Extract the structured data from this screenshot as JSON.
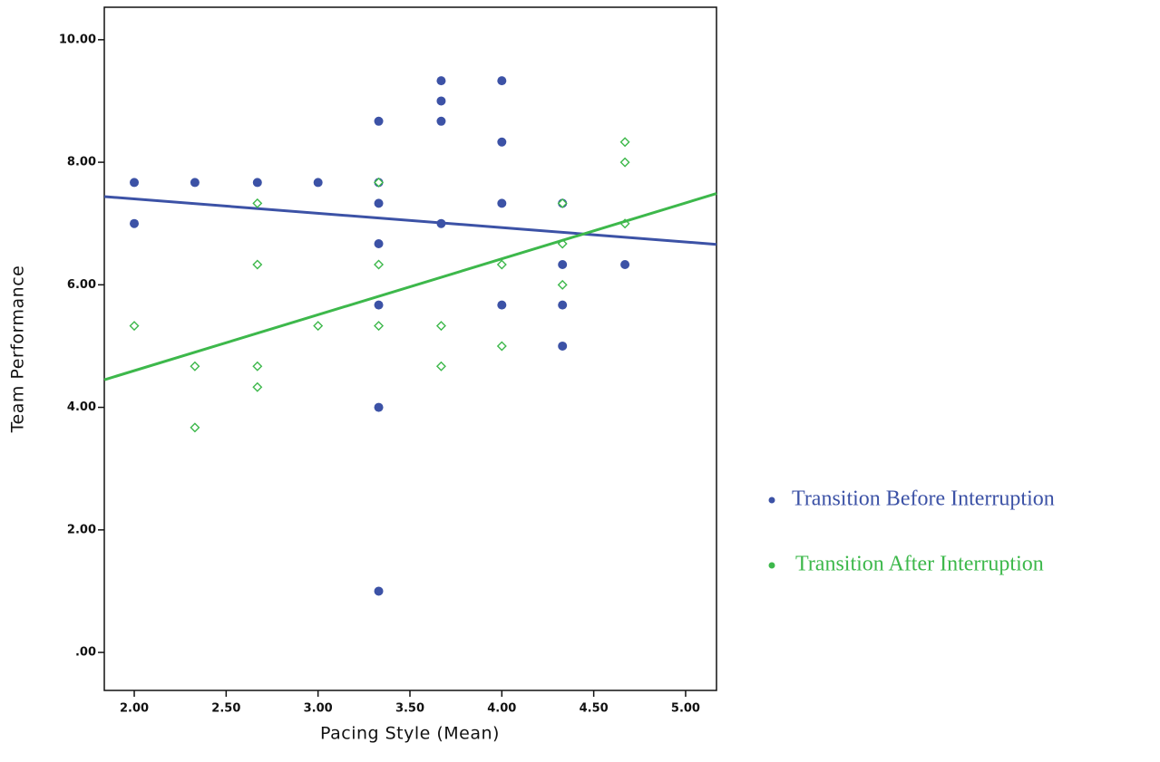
{
  "chart_data": {
    "type": "scatter",
    "x_label": "Pacing Style (Mean)",
    "y_label": "Team Performance",
    "xlim": [
      1.837,
      5.168
    ],
    "ylim": [
      -0.62,
      10.53
    ],
    "xticks": [
      {
        "value": 2,
        "label": "2.00"
      },
      {
        "value": 2.5,
        "label": "2.50"
      },
      {
        "value": 3,
        "label": "3.00"
      },
      {
        "value": 3.5,
        "label": "3.50"
      },
      {
        "value": 4,
        "label": "4.00"
      },
      {
        "value": 4.5,
        "label": "4.50"
      },
      {
        "value": 5,
        "label": "5.00"
      }
    ],
    "yticks": [
      {
        "value": 0,
        "label": ".00"
      },
      {
        "value": 2,
        "label": "2.00"
      },
      {
        "value": 4,
        "label": "4.00"
      },
      {
        "value": 6,
        "label": "6.00"
      },
      {
        "value": 8,
        "label": "8.00"
      },
      {
        "value": 10,
        "label": "10.00"
      }
    ],
    "series": [
      {
        "name": "Transition Before Interruption",
        "color": "#3c52a6",
        "marker": "dot",
        "x": [
          2.0,
          2.0,
          2.33,
          2.67,
          3.0,
          3.33,
          3.33,
          3.33,
          3.33,
          3.33,
          3.33,
          3.33,
          3.67,
          3.67,
          3.67,
          3.67,
          4.0,
          4.0,
          4.0,
          4.0,
          4.33,
          4.33,
          4.33,
          4.33,
          4.67
        ],
        "values": [
          7.67,
          7.0,
          7.67,
          7.67,
          7.67,
          8.67,
          7.67,
          7.33,
          6.67,
          5.67,
          4.0,
          1.0,
          9.33,
          9.0,
          8.67,
          7.0,
          9.33,
          8.33,
          7.33,
          5.67,
          7.33,
          6.33,
          5.67,
          5.0,
          6.33
        ],
        "fit": {
          "x": [
            1.837,
            5.168
          ],
          "y": [
            7.44,
            6.66
          ]
        }
      },
      {
        "name": "Transition After Interruption",
        "color": "#3db84b",
        "marker": "diamond",
        "x": [
          2.0,
          2.33,
          2.33,
          2.67,
          2.67,
          2.67,
          2.67,
          3.0,
          3.33,
          3.33,
          3.33,
          3.67,
          3.67,
          4.0,
          4.0,
          4.33,
          4.33,
          4.33,
          4.67,
          4.67,
          4.67
        ],
        "values": [
          5.33,
          4.67,
          3.67,
          7.33,
          6.33,
          4.67,
          4.33,
          5.33,
          7.67,
          6.33,
          5.33,
          5.33,
          4.67,
          6.33,
          5.0,
          7.33,
          6.67,
          6.0,
          8.33,
          8.0,
          7.0
        ],
        "fit": {
          "x": [
            1.837,
            5.168
          ],
          "y": [
            4.45,
            7.49
          ]
        }
      }
    ]
  }
}
